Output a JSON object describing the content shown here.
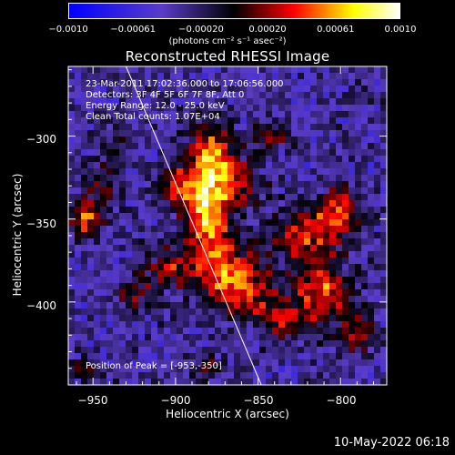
{
  "colorbar": {
    "ticks": [
      "−0.0010",
      "−0.00061",
      "−0.00020",
      "0.00020",
      "0.00061",
      "0.0010"
    ],
    "tick_values": [
      -0.001,
      -0.00061,
      -0.0002,
      0.0002,
      0.00061,
      0.001
    ],
    "unit_text": "(photons cm⁻² s⁻¹ asec⁻²)",
    "colors": [
      "#0000ff",
      "#5a3cc8",
      "#000000",
      "#ff0000",
      "#ffff00",
      "#ffffff"
    ]
  },
  "title": "Reconstructed RHESSI Image",
  "annotations": {
    "time": "23-Mar-2011 17:02:36.000 to 17:06:56.000",
    "detectors": "Detectors: 3F 4F 5F 6F 7F 8F, Att 0",
    "energy": "Energy Range: 12.0 - 25.0 keV",
    "clean": "Clean     Total counts: 1.07E+04",
    "peak": "Position of Peak = [-953,-350]"
  },
  "footer": "10-May-2022 06:18",
  "chart_data": {
    "type": "heatmap",
    "title": "Reconstructed RHESSI Image",
    "xlabel": "Heliocentric X (arcsec)",
    "ylabel": "Heliocentric Y (arcsec)",
    "xlim": [
      -965,
      -772
    ],
    "ylim": [
      -450,
      -258
    ],
    "x_ticks": [
      -950,
      -900,
      -850,
      -800
    ],
    "y_ticks": [
      -300,
      -350,
      -400
    ],
    "x_tick_labels": [
      "−950",
      "−900",
      "−850",
      "−800"
    ],
    "y_tick_labels": [
      "−300",
      "−350",
      "−400"
    ],
    "color_range": [
      -0.001,
      0.001
    ],
    "limb_line": [
      [
        -930,
        -258
      ],
      [
        -848,
        -450
      ]
    ],
    "peak": [
      -953,
      -350
    ],
    "grid": false,
    "sources": [
      {
        "x": -878,
        "y": -315,
        "sx": 10,
        "sy": 16,
        "peak": 0.00095
      },
      {
        "x": -882,
        "y": -345,
        "sx": 9,
        "sy": 14,
        "peak": 0.0009
      },
      {
        "x": -875,
        "y": -375,
        "sx": 16,
        "sy": 12,
        "peak": 0.00075
      },
      {
        "x": -860,
        "y": -395,
        "sx": 14,
        "sy": 10,
        "peak": 0.0007
      },
      {
        "x": -900,
        "y": -330,
        "sx": 8,
        "sy": 8,
        "peak": 0.0006
      },
      {
        "x": -955,
        "y": -350,
        "sx": 6,
        "sy": 7,
        "peak": 0.00085
      },
      {
        "x": -945,
        "y": -330,
        "sx": 8,
        "sy": 10,
        "peak": 0.0004
      },
      {
        "x": -820,
        "y": -360,
        "sx": 14,
        "sy": 12,
        "peak": 0.0007
      },
      {
        "x": -810,
        "y": -395,
        "sx": 12,
        "sy": 12,
        "peak": 0.00075
      },
      {
        "x": -800,
        "y": -345,
        "sx": 9,
        "sy": 10,
        "peak": 0.0006
      },
      {
        "x": -835,
        "y": -410,
        "sx": 10,
        "sy": 8,
        "peak": 0.0006
      },
      {
        "x": -790,
        "y": -420,
        "sx": 8,
        "sy": 8,
        "peak": 0.0005
      },
      {
        "x": -905,
        "y": -380,
        "sx": 10,
        "sy": 8,
        "peak": 0.0004
      },
      {
        "x": -860,
        "y": -330,
        "sx": 9,
        "sy": 9,
        "peak": 0.0005
      },
      {
        "x": -840,
        "y": -300,
        "sx": 8,
        "sy": 7,
        "peak": 0.00035
      },
      {
        "x": -925,
        "y": -395,
        "sx": 9,
        "sy": 8,
        "peak": 0.0004
      },
      {
        "x": -955,
        "y": -440,
        "sx": 6,
        "sy": 6,
        "peak": 0.0003
      },
      {
        "x": -935,
        "y": -300,
        "sx": 7,
        "sy": 7,
        "peak": 0.0003
      },
      {
        "x": -880,
        "y": -440,
        "sx": 7,
        "sy": 6,
        "peak": 0.00035
      }
    ],
    "background_level": -0.00035,
    "noise_amplitude": 0.00022
  }
}
